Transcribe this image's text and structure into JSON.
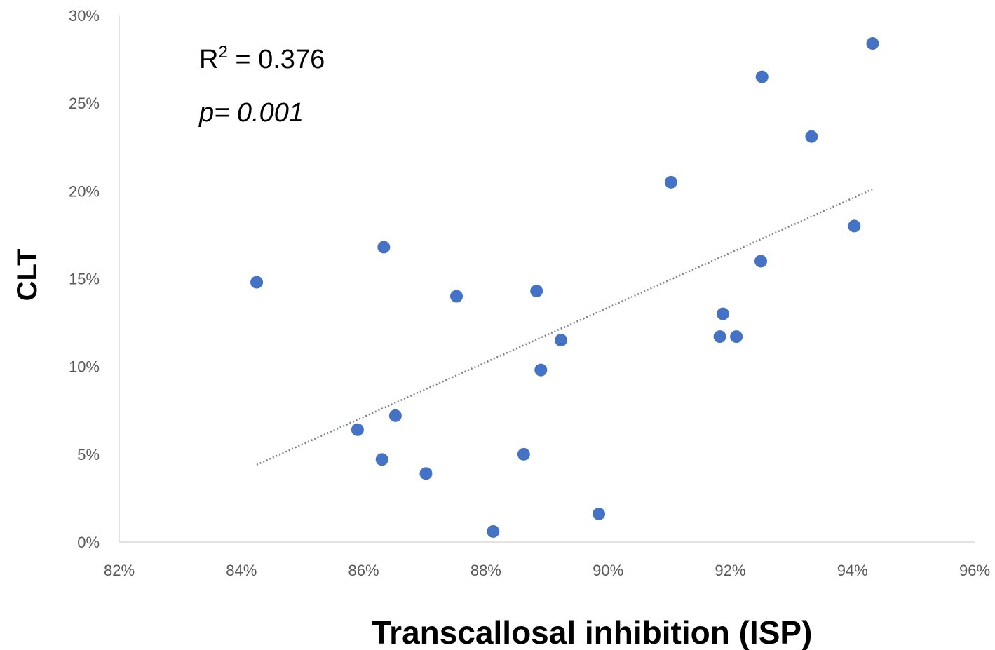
{
  "chart_data": {
    "type": "scatter",
    "title": "",
    "xlabel": "Transcallosal inhibition (ISP)",
    "ylabel": "CLT",
    "xlim": [
      0.82,
      0.96
    ],
    "ylim": [
      0,
      0.3
    ],
    "x_ticks": [
      "82%",
      "84%",
      "86%",
      "88%",
      "90%",
      "92%",
      "94%",
      "96%"
    ],
    "y_ticks": [
      "0%",
      "5%",
      "10%",
      "15%",
      "20%",
      "25%",
      "30%"
    ],
    "grid": false,
    "series": [
      {
        "color": "#4472C4",
        "points": [
          {
            "x": 0.8425,
            "y": 0.148
          },
          {
            "x": 0.859,
            "y": 0.064
          },
          {
            "x": 0.863,
            "y": 0.047
          },
          {
            "x": 0.8633,
            "y": 0.168
          },
          {
            "x": 0.8652,
            "y": 0.072
          },
          {
            "x": 0.8702,
            "y": 0.039
          },
          {
            "x": 0.8752,
            "y": 0.14
          },
          {
            "x": 0.8812,
            "y": 0.006
          },
          {
            "x": 0.8862,
            "y": 0.05
          },
          {
            "x": 0.8883,
            "y": 0.143
          },
          {
            "x": 0.889,
            "y": 0.098
          },
          {
            "x": 0.8923,
            "y": 0.115
          },
          {
            "x": 0.8985,
            "y": 0.016
          },
          {
            "x": 0.9103,
            "y": 0.205
          },
          {
            "x": 0.9183,
            "y": 0.117
          },
          {
            "x": 0.9188,
            "y": 0.13
          },
          {
            "x": 0.921,
            "y": 0.117
          },
          {
            "x": 0.925,
            "y": 0.16
          },
          {
            "x": 0.9252,
            "y": 0.265
          },
          {
            "x": 0.9333,
            "y": 0.231
          },
          {
            "x": 0.9403,
            "y": 0.18
          },
          {
            "x": 0.9433,
            "y": 0.284
          }
        ]
      }
    ],
    "trendline": {
      "type": "linear",
      "style": "dotted",
      "color": "#7f7f7f",
      "from": {
        "x": 0.8425,
        "y": 0.044
      },
      "to": {
        "x": 0.9433,
        "y": 0.201
      }
    },
    "annotations": {
      "r_squared_label": "R",
      "r_squared_superscript": "2",
      "r_squared_value": " = 0.376",
      "p_value": "p= 0.001"
    }
  }
}
